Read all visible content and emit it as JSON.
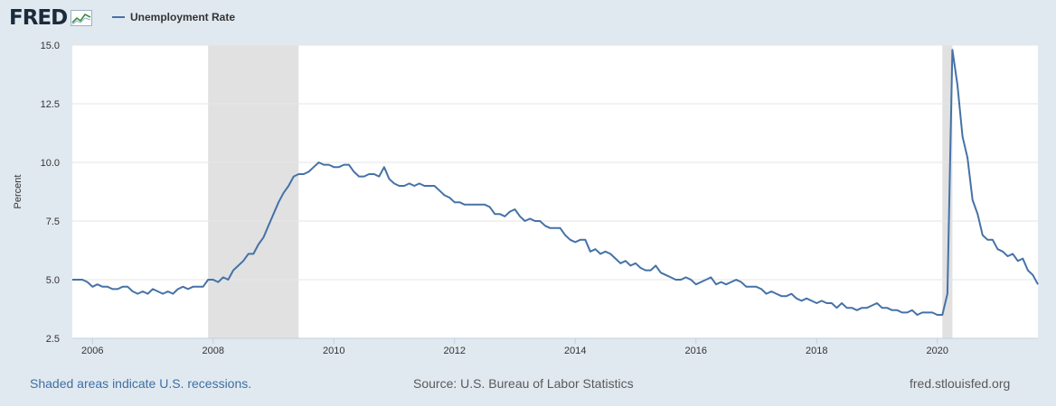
{
  "header": {
    "logo_text": "FRED",
    "legend_label": "Unemployment Rate"
  },
  "colors": {
    "series": "#4572a7",
    "recession": "#e1e1e1",
    "background": "#e1e9f0"
  },
  "footer": {
    "left": "Shaded areas indicate U.S. recessions.",
    "source": "Source: U.S. Bureau of Labor Statistics",
    "site": "fred.stlouisfed.org"
  },
  "chart_data": {
    "type": "line",
    "ylabel": "Percent",
    "ylim": [
      2.5,
      15.0
    ],
    "yticks": [
      "2.5",
      "5.0",
      "7.5",
      "10.0",
      "12.5",
      "15.0"
    ],
    "xlim": [
      "2005-09",
      "2021-09"
    ],
    "xticks": [
      "2006",
      "2008",
      "2010",
      "2012",
      "2014",
      "2016",
      "2018",
      "2020"
    ],
    "grid": true,
    "recessions": [
      [
        "2007-12",
        "2009-06"
      ],
      [
        "2020-02",
        "2020-04"
      ]
    ],
    "series": [
      {
        "name": "Unemployment Rate",
        "x": [
          "2005-09",
          "2005-10",
          "2005-11",
          "2005-12",
          "2006-01",
          "2006-02",
          "2006-03",
          "2006-04",
          "2006-05",
          "2006-06",
          "2006-07",
          "2006-08",
          "2006-09",
          "2006-10",
          "2006-11",
          "2006-12",
          "2007-01",
          "2007-02",
          "2007-03",
          "2007-04",
          "2007-05",
          "2007-06",
          "2007-07",
          "2007-08",
          "2007-09",
          "2007-10",
          "2007-11",
          "2007-12",
          "2008-01",
          "2008-02",
          "2008-03",
          "2008-04",
          "2008-05",
          "2008-06",
          "2008-07",
          "2008-08",
          "2008-09",
          "2008-10",
          "2008-11",
          "2008-12",
          "2009-01",
          "2009-02",
          "2009-03",
          "2009-04",
          "2009-05",
          "2009-06",
          "2009-07",
          "2009-08",
          "2009-09",
          "2009-10",
          "2009-11",
          "2009-12",
          "2010-01",
          "2010-02",
          "2010-03",
          "2010-04",
          "2010-05",
          "2010-06",
          "2010-07",
          "2010-08",
          "2010-09",
          "2010-10",
          "2010-11",
          "2010-12",
          "2011-01",
          "2011-02",
          "2011-03",
          "2011-04",
          "2011-05",
          "2011-06",
          "2011-07",
          "2011-08",
          "2011-09",
          "2011-10",
          "2011-11",
          "2011-12",
          "2012-01",
          "2012-02",
          "2012-03",
          "2012-04",
          "2012-05",
          "2012-06",
          "2012-07",
          "2012-08",
          "2012-09",
          "2012-10",
          "2012-11",
          "2012-12",
          "2013-01",
          "2013-02",
          "2013-03",
          "2013-04",
          "2013-05",
          "2013-06",
          "2013-07",
          "2013-08",
          "2013-09",
          "2013-10",
          "2013-11",
          "2013-12",
          "2014-01",
          "2014-02",
          "2014-03",
          "2014-04",
          "2014-05",
          "2014-06",
          "2014-07",
          "2014-08",
          "2014-09",
          "2014-10",
          "2014-11",
          "2014-12",
          "2015-01",
          "2015-02",
          "2015-03",
          "2015-04",
          "2015-05",
          "2015-06",
          "2015-07",
          "2015-08",
          "2015-09",
          "2015-10",
          "2015-11",
          "2015-12",
          "2016-01",
          "2016-02",
          "2016-03",
          "2016-04",
          "2016-05",
          "2016-06",
          "2016-07",
          "2016-08",
          "2016-09",
          "2016-10",
          "2016-11",
          "2016-12",
          "2017-01",
          "2017-02",
          "2017-03",
          "2017-04",
          "2017-05",
          "2017-06",
          "2017-07",
          "2017-08",
          "2017-09",
          "2017-10",
          "2017-11",
          "2017-12",
          "2018-01",
          "2018-02",
          "2018-03",
          "2018-04",
          "2018-05",
          "2018-06",
          "2018-07",
          "2018-08",
          "2018-09",
          "2018-10",
          "2018-11",
          "2018-12",
          "2019-01",
          "2019-02",
          "2019-03",
          "2019-04",
          "2019-05",
          "2019-06",
          "2019-07",
          "2019-08",
          "2019-09",
          "2019-10",
          "2019-11",
          "2019-12",
          "2020-01",
          "2020-02",
          "2020-03",
          "2020-04",
          "2020-05",
          "2020-06",
          "2020-07",
          "2020-08",
          "2020-09",
          "2020-10",
          "2020-11",
          "2020-12",
          "2021-01",
          "2021-02",
          "2021-03",
          "2021-04",
          "2021-05",
          "2021-06",
          "2021-07",
          "2021-08",
          "2021-09"
        ],
        "y": [
          5.0,
          5.0,
          5.0,
          4.9,
          4.7,
          4.8,
          4.7,
          4.7,
          4.6,
          4.6,
          4.7,
          4.7,
          4.5,
          4.4,
          4.5,
          4.4,
          4.6,
          4.5,
          4.4,
          4.5,
          4.4,
          4.6,
          4.7,
          4.6,
          4.7,
          4.7,
          4.7,
          5.0,
          5.0,
          4.9,
          5.1,
          5.0,
          5.4,
          5.6,
          5.8,
          6.1,
          6.1,
          6.5,
          6.8,
          7.3,
          7.8,
          8.3,
          8.7,
          9.0,
          9.4,
          9.5,
          9.5,
          9.6,
          9.8,
          10.0,
          9.9,
          9.9,
          9.8,
          9.8,
          9.9,
          9.9,
          9.6,
          9.4,
          9.4,
          9.5,
          9.5,
          9.4,
          9.8,
          9.3,
          9.1,
          9.0,
          9.0,
          9.1,
          9.0,
          9.1,
          9.0,
          9.0,
          9.0,
          8.8,
          8.6,
          8.5,
          8.3,
          8.3,
          8.2,
          8.2,
          8.2,
          8.2,
          8.2,
          8.1,
          7.8,
          7.8,
          7.7,
          7.9,
          8.0,
          7.7,
          7.5,
          7.6,
          7.5,
          7.5,
          7.3,
          7.2,
          7.2,
          7.2,
          6.9,
          6.7,
          6.6,
          6.7,
          6.7,
          6.2,
          6.3,
          6.1,
          6.2,
          6.1,
          5.9,
          5.7,
          5.8,
          5.6,
          5.7,
          5.5,
          5.4,
          5.4,
          5.6,
          5.3,
          5.2,
          5.1,
          5.0,
          5.0,
          5.1,
          5.0,
          4.8,
          4.9,
          5.0,
          5.1,
          4.8,
          4.9,
          4.8,
          4.9,
          5.0,
          4.9,
          4.7,
          4.7,
          4.7,
          4.6,
          4.4,
          4.5,
          4.4,
          4.3,
          4.3,
          4.4,
          4.2,
          4.1,
          4.2,
          4.1,
          4.0,
          4.1,
          4.0,
          4.0,
          3.8,
          4.0,
          3.8,
          3.8,
          3.7,
          3.8,
          3.8,
          3.9,
          4.0,
          3.8,
          3.8,
          3.7,
          3.7,
          3.6,
          3.6,
          3.7,
          3.5,
          3.6,
          3.6,
          3.6,
          3.5,
          3.5,
          4.4,
          14.8,
          13.3,
          11.1,
          10.2,
          8.4,
          7.8,
          6.9,
          6.7,
          6.7,
          6.3,
          6.2,
          6.0,
          6.1,
          5.8,
          5.9,
          5.4,
          5.2,
          4.8
        ]
      }
    ]
  }
}
